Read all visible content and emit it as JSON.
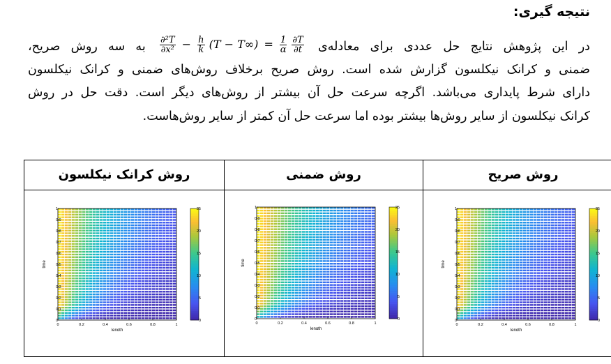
{
  "heading": "نتیجه گیری:",
  "paragraph": {
    "line1_before": "در این پژوهش نتایج حل عددی برای معادله‌ی",
    "line1_after": "به سه روش صریح،",
    "line2": "ضمنی و کرانک نیکلسون گزارش شده است. روش صریح برخلاف روش‌های ضمنی و کرانک نیکلسون",
    "line3": "دارای شرط پایداری می‌باشد. اگرچه سرعت حل آن بیشتر از روش‌های دیگر است. دقت حل در روش",
    "line4": "کرانک نیکلسون از سایر روش‌ها بیشتر بوده اما سرعت حل آن کمتر از سایر روش‌هاست."
  },
  "equation": {
    "d2": "∂²T",
    "dx2": "∂x²",
    "minus": "−",
    "h": "h",
    "k": "k",
    "term": "(T − T∞)",
    "equals": "=",
    "one": "1",
    "alpha": "α",
    "dT": "∂T",
    "dt": "∂t"
  },
  "columns": [
    {
      "title": "روش صریح",
      "variant": "explicit"
    },
    {
      "title": "روش ضمنی",
      "variant": "implicit"
    },
    {
      "title": "روش کرانک نیکلسون",
      "variant": "crank"
    }
  ],
  "plot_common": {
    "ylabel": "time",
    "xlabel": "length",
    "yticks": [
      "0",
      "0.1",
      "0.2",
      "0.3",
      "0.4",
      "0.5",
      "0.6",
      "0.7",
      "0.8",
      "0.9",
      "1"
    ],
    "xticks": [
      "0",
      "0.2",
      "0.4",
      "0.6",
      "0.8",
      "1"
    ],
    "colorbar_ticks": [
      "0",
      "5",
      "10",
      "15",
      "20",
      "25"
    ]
  },
  "chart_data": [
    {
      "type": "heatmap",
      "title": "روش صریح",
      "xlabel": "length",
      "ylabel": "time",
      "xlim": [
        0,
        1
      ],
      "ylim": [
        0,
        1
      ],
      "clim": [
        0,
        25
      ],
      "colormap": "parula"
    },
    {
      "type": "heatmap",
      "title": "روش ضمنی",
      "xlabel": "length",
      "ylabel": "time",
      "xlim": [
        0,
        1
      ],
      "ylim": [
        0,
        1
      ],
      "clim": [
        0,
        25
      ],
      "colormap": "parula"
    },
    {
      "type": "heatmap",
      "title": "روش کرانک نیکلسون",
      "xlabel": "length",
      "ylabel": "time",
      "xlim": [
        0,
        1
      ],
      "ylim": [
        0,
        1
      ],
      "clim": [
        0,
        25
      ],
      "colormap": "parula"
    }
  ]
}
